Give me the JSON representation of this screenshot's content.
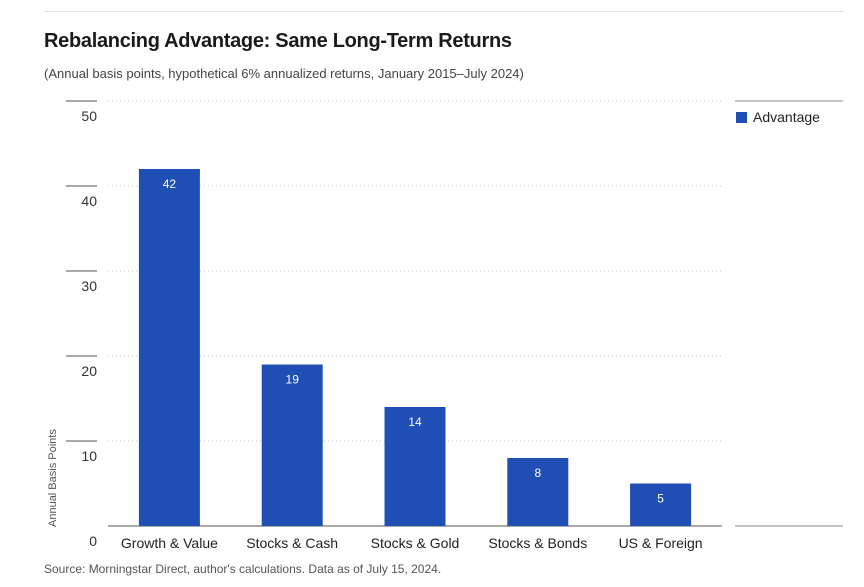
{
  "title": "Rebalancing Advantage: Same Long-Term Returns",
  "subtitle": "(Annual basis points, hypothetical 6% annualized returns, January 2015–July 2024)",
  "source": "Source: Morningstar Direct, author's calculations. Data as of July 15, 2024.",
  "colors": {
    "bar": "#1f4fb4",
    "grid": "#c8c8c8",
    "axis": "#555555"
  },
  "chart_data": {
    "type": "bar",
    "title": "Rebalancing Advantage: Same Long-Term Returns",
    "ylabel": "Annual Basis Points",
    "xlabel": "",
    "ylim": [
      0,
      50
    ],
    "yticks": [
      0,
      10,
      20,
      30,
      40,
      50
    ],
    "categories": [
      "Growth & Value",
      "Stocks & Cash",
      "Stocks & Gold",
      "Stocks & Bonds",
      "US & Foreign"
    ],
    "series": [
      {
        "name": "Advantage",
        "values": [
          42,
          19,
          14,
          8,
          5
        ]
      }
    ],
    "data_labels": true,
    "grid": true,
    "legend_position": "top-right"
  }
}
